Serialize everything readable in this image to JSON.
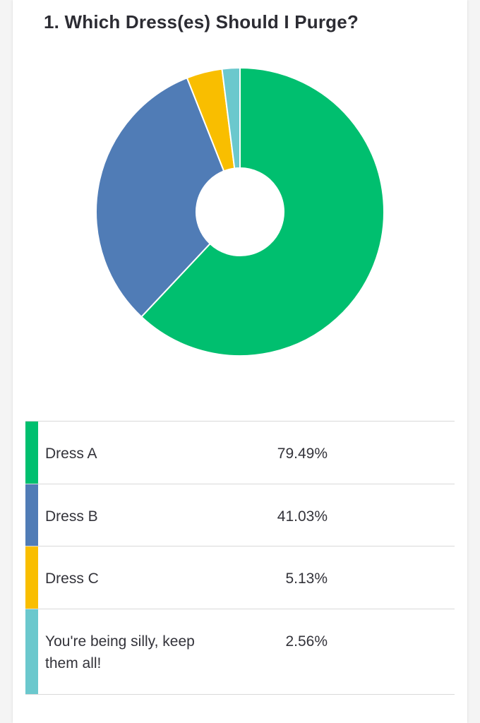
{
  "question": {
    "title": "1. Which Dress(es) Should I Purge?"
  },
  "chart_data": {
    "type": "pie",
    "donut": true,
    "categories": [
      "Dress A",
      "Dress B",
      "Dress C",
      "You're being silly, keep them all!"
    ],
    "values": [
      79.49,
      41.03,
      5.13,
      2.56
    ],
    "value_labels": [
      "79.49%",
      "41.03%",
      "5.13%",
      "2.56%"
    ],
    "colors": [
      "#00bf6f",
      "#507cb6",
      "#f9be00",
      "#6bc8cd"
    ],
    "legend_placement": "bottom"
  }
}
